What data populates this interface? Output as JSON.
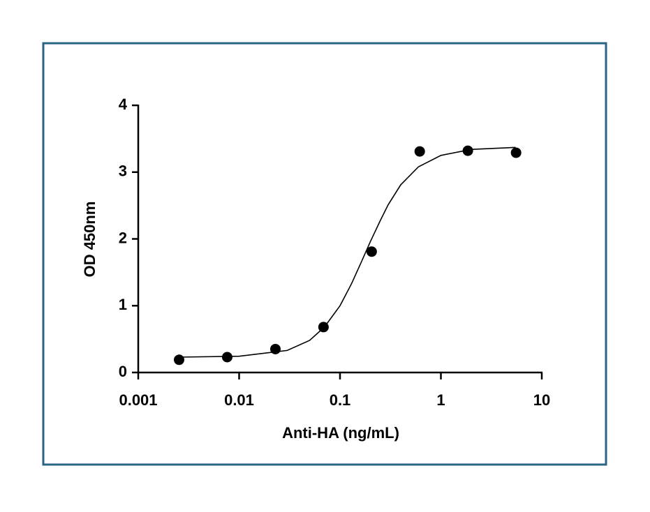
{
  "chart_data": {
    "type": "scatter",
    "xlabel": "Anti-HA (ng/mL)",
    "ylabel": "OD 450nm",
    "x": [
      0.00254,
      0.00762,
      0.0229,
      0.0686,
      0.206,
      0.617,
      1.85,
      5.56
    ],
    "values": [
      0.19,
      0.23,
      0.35,
      0.68,
      1.81,
      3.31,
      3.32,
      3.29
    ],
    "color": "#000000",
    "fit": {
      "x": [
        0.0025,
        0.01,
        0.03,
        0.05,
        0.07,
        0.1,
        0.13,
        0.16,
        0.2,
        0.25,
        0.3,
        0.4,
        0.6,
        1,
        2,
        5.5
      ],
      "values": [
        0.23,
        0.243,
        0.33,
        0.48,
        0.68,
        1.0,
        1.33,
        1.63,
        1.96,
        2.27,
        2.51,
        2.81,
        3.08,
        3.25,
        3.34,
        3.37
      ]
    },
    "xlog": true,
    "xlim": [
      0.001,
      10
    ],
    "xticks": [
      0.001,
      0.01,
      0.1,
      1,
      10
    ],
    "ylim": [
      0,
      4
    ],
    "yticks": [
      0,
      1,
      2,
      3,
      4
    ],
    "grid": false
  }
}
